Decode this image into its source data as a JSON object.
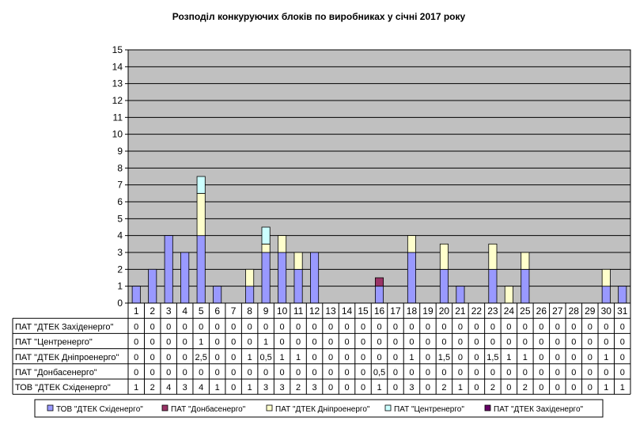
{
  "chart_data": {
    "type": "bar",
    "stacked": true,
    "title": "Розподіл конкуруючих  блоків по виробниках  у січні 2017 року",
    "categories": [
      "1",
      "2",
      "3",
      "4",
      "5",
      "6",
      "7",
      "8",
      "9",
      "10",
      "11",
      "12",
      "13",
      "14",
      "15",
      "16",
      "17",
      "18",
      "19",
      "20",
      "21",
      "22",
      "23",
      "24",
      "25",
      "26",
      "27",
      "28",
      "29",
      "30",
      "31"
    ],
    "ylim": [
      0,
      15
    ],
    "yticks": [
      "0",
      "1",
      "2",
      "3",
      "4",
      "5",
      "6",
      "7",
      "8",
      "9",
      "10",
      "11",
      "12",
      "13",
      "14",
      "15"
    ],
    "grid": true,
    "legend_position": "bottom",
    "series": [
      {
        "name": "ТОВ \"ДТЕК Сxiдeнepгo\"",
        "color": "#9999ff",
        "values": [
          1,
          2,
          4,
          3,
          4,
          1,
          0,
          1,
          3,
          3,
          2,
          3,
          0,
          0,
          0,
          1,
          0,
          3,
          0,
          2,
          1,
          0,
          2,
          0,
          2,
          0,
          0,
          0,
          0,
          1,
          1
        ],
        "labels": [
          "1",
          "2",
          "4",
          "3",
          "4",
          "1",
          "0",
          "1",
          "3",
          "3",
          "2",
          "3",
          "0",
          "0",
          "0",
          "1",
          "0",
          "3",
          "0",
          "2",
          "1",
          "0",
          "2",
          "0",
          "2",
          "0",
          "0",
          "0",
          "0",
          "1",
          "1"
        ]
      },
      {
        "name": "ПАТ \"Донбасенерго\"",
        "color": "#993366",
        "values": [
          0,
          0,
          0,
          0,
          0,
          0,
          0,
          0,
          0,
          0,
          0,
          0,
          0,
          0,
          0,
          0.5,
          0,
          0,
          0,
          0,
          0,
          0,
          0,
          0,
          0,
          0,
          0,
          0,
          0,
          0,
          0
        ],
        "labels": [
          "0",
          "0",
          "0",
          "0",
          "0",
          "0",
          "0",
          "0",
          "0",
          "0",
          "0",
          "0",
          "0",
          "0",
          "0",
          "0,5",
          "0",
          "0",
          "0",
          "0",
          "0",
          "0",
          "0",
          "0",
          "0",
          "0",
          "0",
          "0",
          "0",
          "0",
          "0"
        ]
      },
      {
        "name": "ПАТ \"ДТЕК Дніпроенерго\"",
        "color": "#ffffcc",
        "values": [
          0,
          0,
          0,
          0,
          2.5,
          0,
          0,
          1,
          0.5,
          1,
          1,
          0,
          0,
          0,
          0,
          0,
          0,
          1,
          0,
          1.5,
          0,
          0,
          1.5,
          1,
          1,
          0,
          0,
          0,
          0,
          1,
          0
        ],
        "labels": [
          "0",
          "0",
          "0",
          "0",
          "2,5",
          "0",
          "0",
          "1",
          "0,5",
          "1",
          "1",
          "0",
          "0",
          "0",
          "0",
          "0",
          "0",
          "1",
          "0",
          "1,5",
          "0",
          "0",
          "1,5",
          "1",
          "1",
          "0",
          "0",
          "0",
          "0",
          "1",
          "0"
        ]
      },
      {
        "name": "ПАТ \"Центренерго\"",
        "color": "#ccffff",
        "values": [
          0,
          0,
          0,
          0,
          1,
          0,
          0,
          0,
          1,
          0,
          0,
          0,
          0,
          0,
          0,
          0,
          0,
          0,
          0,
          0,
          0,
          0,
          0,
          0,
          0,
          0,
          0,
          0,
          0,
          0,
          0
        ],
        "labels": [
          "0",
          "0",
          "0",
          "0",
          "1",
          "0",
          "0",
          "0",
          "1",
          "0",
          "0",
          "0",
          "0",
          "0",
          "0",
          "0",
          "0",
          "0",
          "0",
          "0",
          "0",
          "0",
          "0",
          "0",
          "0",
          "0",
          "0",
          "0",
          "0",
          "0",
          "0"
        ]
      },
      {
        "name": "ПАТ \"ДТЕК Західенерго\"",
        "color": "#660066",
        "values": [
          0,
          0,
          0,
          0,
          0,
          0,
          0,
          0,
          0,
          0,
          0,
          0,
          0,
          0,
          0,
          0,
          0,
          0,
          0,
          0,
          0,
          0,
          0,
          0,
          0,
          0,
          0,
          0,
          0,
          0,
          0
        ],
        "labels": [
          "0",
          "0",
          "0",
          "0",
          "0",
          "0",
          "0",
          "0",
          "0",
          "0",
          "0",
          "0",
          "0",
          "0",
          "0",
          "0",
          "0",
          "0",
          "0",
          "0",
          "0",
          "0",
          "0",
          "0",
          "0",
          "0",
          "0",
          "0",
          "0",
          "0",
          "0"
        ]
      }
    ],
    "table_row_order": [
      4,
      3,
      2,
      1,
      0
    ],
    "table_row_labels": [
      "ПАТ \"ДТЕК Західенерго\"",
      "ПАТ \"Центренерго\"",
      "ПАТ \"ДТЕК Дніпроенерго\"",
      "ПАТ \"Донбасенерго\"",
      "ТОВ \"ДТЕК Сxiдeнepгo\""
    ],
    "legend_labels": [
      "ТОВ \"ДТЕК Сxiдeнepгo\"",
      "ПАТ \"Донбасенерго\"",
      "ПАТ \"ДТЕК Дніпроенерго\"",
      "ПАТ \"Центренерго\"",
      "ПАТ \"ДТЕК Західенерго\""
    ]
  },
  "colors": {
    "plot_background": "#c0c0c0",
    "grid": "#000000",
    "bar_outline": "#000000"
  }
}
